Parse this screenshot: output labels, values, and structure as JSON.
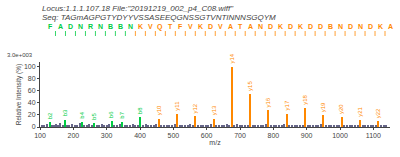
{
  "chart_data": {
    "type": "stem",
    "title": "Locus:1.1.1.107.18 File:\"20191219_002_p4_C08.wiff\"",
    "subtitle": "Seq: TAGmAGPGTYDYYVSSASEEQGNSSGTVNTINNNSGQYM",
    "xlabel": "m/z",
    "ylabel": "Relative Intensity (%)",
    "annotation": "3.0e+003",
    "xlim": [
      100,
      1150
    ],
    "xticks": [
      100,
      200,
      300,
      400,
      500,
      600,
      700,
      800,
      900,
      1000,
      1100
    ],
    "ylim": [
      0,
      108
    ],
    "yticks": [
      0,
      20,
      40,
      60,
      80,
      100
    ],
    "grid": false,
    "x": [
      105,
      112,
      120,
      129,
      136,
      143,
      148,
      155,
      160,
      168,
      175,
      182,
      188,
      196,
      204,
      212,
      219,
      226,
      233,
      240,
      248,
      255,
      262,
      270,
      277,
      285,
      292,
      300,
      308,
      315,
      323,
      331,
      339,
      346,
      354,
      362,
      370,
      378,
      385,
      393,
      401,
      409,
      417,
      425,
      433,
      441,
      449,
      456,
      464,
      472,
      480,
      488,
      496,
      504,
      511,
      519,
      527,
      535,
      543,
      551,
      559,
      566,
      574,
      582,
      590,
      598,
      605,
      613,
      621,
      629,
      637,
      645,
      652,
      660,
      668,
      675,
      683,
      691,
      699,
      707,
      715,
      723,
      730,
      738,
      746,
      754,
      762,
      770,
      778,
      785,
      793,
      801,
      809,
      817,
      825,
      833,
      840,
      848,
      856,
      864,
      872,
      880,
      888,
      895,
      903,
      911,
      919,
      927,
      935,
      943,
      950,
      958,
      966,
      974,
      982,
      990,
      998,
      1005,
      1013,
      1021,
      1029,
      1037,
      1045,
      1053,
      1060,
      1068,
      1076,
      1084,
      1092,
      1100,
      1108,
      1115,
      1123,
      1131,
      1139
    ],
    "values": [
      3,
      4,
      5,
      8,
      3,
      4,
      5,
      3,
      6,
      4,
      12,
      3,
      4,
      5,
      3,
      4,
      6,
      8,
      3,
      4,
      5,
      3,
      6,
      3,
      4,
      5,
      3,
      4,
      5,
      10,
      3,
      4,
      5,
      8,
      3,
      4,
      3,
      5,
      4,
      3,
      16,
      3,
      5,
      4,
      3,
      4,
      5,
      14,
      3,
      4,
      3,
      4,
      3,
      5,
      22,
      3,
      4,
      3,
      4,
      5,
      3,
      18,
      3,
      4,
      3,
      4,
      3,
      5,
      14,
      3,
      4,
      3,
      4,
      5,
      4,
      100,
      3,
      5,
      4,
      3,
      4,
      3,
      55,
      3,
      4,
      3,
      4,
      3,
      5,
      28,
      3,
      4,
      3,
      4,
      3,
      5,
      22,
      3,
      4,
      3,
      4,
      3,
      4,
      32,
      3,
      4,
      3,
      4,
      3,
      5,
      20,
      3,
      4,
      3,
      4,
      3,
      4,
      16,
      3,
      4,
      3,
      4,
      3,
      4,
      12,
      3,
      4,
      3,
      4,
      3,
      4,
      10,
      3,
      4,
      3
    ],
    "colors": [
      "#666688",
      "#666688",
      "#666688",
      "#00cc44",
      "#666688",
      "#666688",
      "#666688",
      "#666688",
      "#666688",
      "#666688",
      "#00cc44",
      "#666688",
      "#666688",
      "#666688",
      "#666688",
      "#666688",
      "#666688",
      "#00cc44",
      "#666688",
      "#666688",
      "#666688",
      "#666688",
      "#00cc44",
      "#666688",
      "#666688",
      "#666688",
      "#666688",
      "#666688",
      "#666688",
      "#00cc44",
      "#666688",
      "#666688",
      "#666688",
      "#00cc44",
      "#666688",
      "#666688",
      "#666688",
      "#666688",
      "#666688",
      "#666688",
      "#00cc44",
      "#666688",
      "#666688",
      "#666688",
      "#666688",
      "#666688",
      "#666688",
      "#ff8800",
      "#666688",
      "#666688",
      "#666688",
      "#666688",
      "#666688",
      "#666688",
      "#ff8800",
      "#666688",
      "#666688",
      "#666688",
      "#666688",
      "#666688",
      "#666688",
      "#ff8800",
      "#666688",
      "#666688",
      "#666688",
      "#666688",
      "#666688",
      "#666688",
      "#ff8800",
      "#666688",
      "#666688",
      "#666688",
      "#666688",
      "#666688",
      "#666688",
      "#ff8800",
      "#666688",
      "#666688",
      "#666688",
      "#666688",
      "#666688",
      "#666688",
      "#ff8800",
      "#666688",
      "#666688",
      "#666688",
      "#666688",
      "#666688",
      "#666688",
      "#ff8800",
      "#666688",
      "#666688",
      "#666688",
      "#666688",
      "#666688",
      "#666688",
      "#ff8800",
      "#666688",
      "#666688",
      "#666688",
      "#666688",
      "#666688",
      "#666688",
      "#ff8800",
      "#666688",
      "#666688",
      "#666688",
      "#666688",
      "#666688",
      "#666688",
      "#ff8800",
      "#666688",
      "#666688",
      "#666688",
      "#666688",
      "#666688",
      "#666688",
      "#ff8800",
      "#666688",
      "#666688",
      "#666688",
      "#666688",
      "#666688",
      "#666688",
      "#ff8800",
      "#666688",
      "#666688",
      "#666688",
      "#666688",
      "#666688",
      "#666688",
      "#ff8800",
      "#666688",
      "#666688",
      "#666688"
    ],
    "peak_labels": [
      null,
      null,
      null,
      "b2",
      null,
      null,
      null,
      null,
      null,
      null,
      "b3",
      null,
      null,
      null,
      null,
      null,
      null,
      "b4",
      null,
      null,
      null,
      null,
      "b5",
      null,
      null,
      null,
      null,
      null,
      null,
      "b6",
      null,
      null,
      null,
      "b7",
      null,
      null,
      null,
      null,
      null,
      null,
      "b8",
      null,
      null,
      null,
      null,
      null,
      null,
      "y10",
      null,
      null,
      null,
      null,
      null,
      null,
      "y11",
      null,
      null,
      null,
      null,
      null,
      null,
      "y12",
      null,
      null,
      null,
      null,
      null,
      null,
      "y13",
      null,
      null,
      null,
      null,
      null,
      null,
      "y14",
      null,
      null,
      null,
      null,
      null,
      null,
      "y15",
      null,
      null,
      null,
      null,
      null,
      null,
      "y16",
      null,
      null,
      null,
      null,
      null,
      null,
      "y17",
      null,
      null,
      null,
      null,
      null,
      null,
      "y18",
      null,
      null,
      null,
      null,
      null,
      null,
      "y19",
      null,
      null,
      null,
      null,
      null,
      null,
      "y20",
      null,
      null,
      null,
      null,
      null,
      null,
      "y21",
      null,
      null,
      null,
      null,
      null,
      null,
      "y22",
      null,
      null,
      null
    ],
    "sequence": "FADNRNBBNKVQTFVKDVATANDKDKDDBNDNDKA",
    "sequence_colors": [
      "#00cc44",
      "#00cc44",
      "#00cc44",
      "#00cc44",
      "#00cc44",
      "#00cc44",
      "#00cc44",
      "#00cc44",
      "#00cc44",
      "#ff8800",
      "#ff8800",
      "#ff8800",
      "#ff8800",
      "#ff8800",
      "#ff8800",
      "#ff8800",
      "#ff8800",
      "#ff8800",
      "#ff8800",
      "#ff8800",
      "#ff8800",
      "#ff8800",
      "#ff8800",
      "#ff8800",
      "#ff8800",
      "#ff8800",
      "#ff8800",
      "#ff8800",
      "#ff8800",
      "#ff8800",
      "#ff8800",
      "#ff8800",
      "#ff8800",
      "#ff8800",
      "#ff8800"
    ]
  }
}
